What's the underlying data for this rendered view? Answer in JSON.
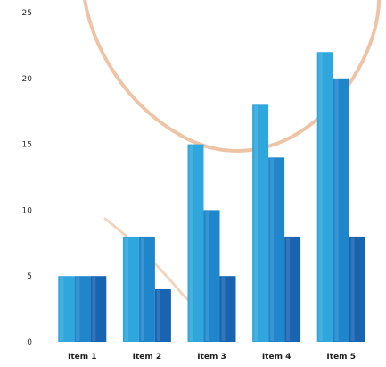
{
  "chart_data": {
    "type": "bar",
    "categories": [
      "Item 1",
      "Item 2",
      "Item 3",
      "Item 4",
      "Item 5"
    ],
    "series": [
      {
        "values": [
          5,
          8,
          15,
          18,
          22
        ],
        "color": "#2fa6dc"
      },
      {
        "values": [
          5,
          8,
          10,
          14,
          20
        ],
        "color": "#1f86cc"
      },
      {
        "values": [
          5,
          4,
          5,
          8,
          8
        ],
        "color": "#1864b0"
      }
    ],
    "y_ticks": [
      "0",
      "5",
      "10",
      "15",
      "20",
      "25"
    ],
    "ylim": [
      0,
      25
    ],
    "grid": false,
    "legend": "none",
    "decoration_color": "#e8b089"
  }
}
